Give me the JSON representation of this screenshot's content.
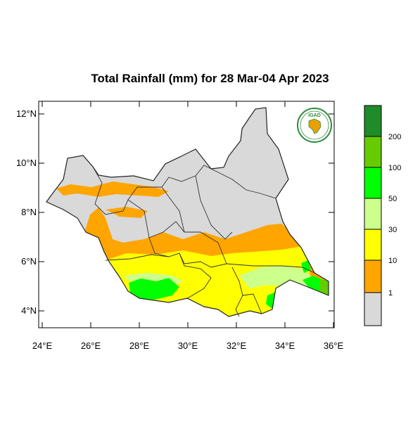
{
  "title": "Total Rainfall (mm) for 28 Mar-04 Apr 2023",
  "logo": {
    "text": "IGAD",
    "icon": "igad-logo-africa-map"
  },
  "axes": {
    "y_ticks": [
      "12°N",
      "10°N",
      "8°N",
      "6°N",
      "4°N"
    ],
    "x_ticks": [
      "24°E",
      "26°E",
      "28°E",
      "30°E",
      "32°E",
      "34°E",
      "36°E"
    ]
  },
  "legend": {
    "labels": [
      "1",
      "10",
      "30",
      "50",
      "100",
      "200"
    ],
    "colors": [
      "#d9d9d9",
      "#ffa500",
      "#ffff00",
      "#ccff8c",
      "#00ff00",
      "#66cc00",
      "#1f8c2a"
    ]
  },
  "colors": {
    "no_rain": "#d9d9d9",
    "r1_10": "#ffa500",
    "r10_30": "#ffff00",
    "r30_50": "#ccff8c",
    "r50_100": "#00ff00",
    "r100_200": "#66cc00",
    "r200": "#1f8c2a"
  }
}
